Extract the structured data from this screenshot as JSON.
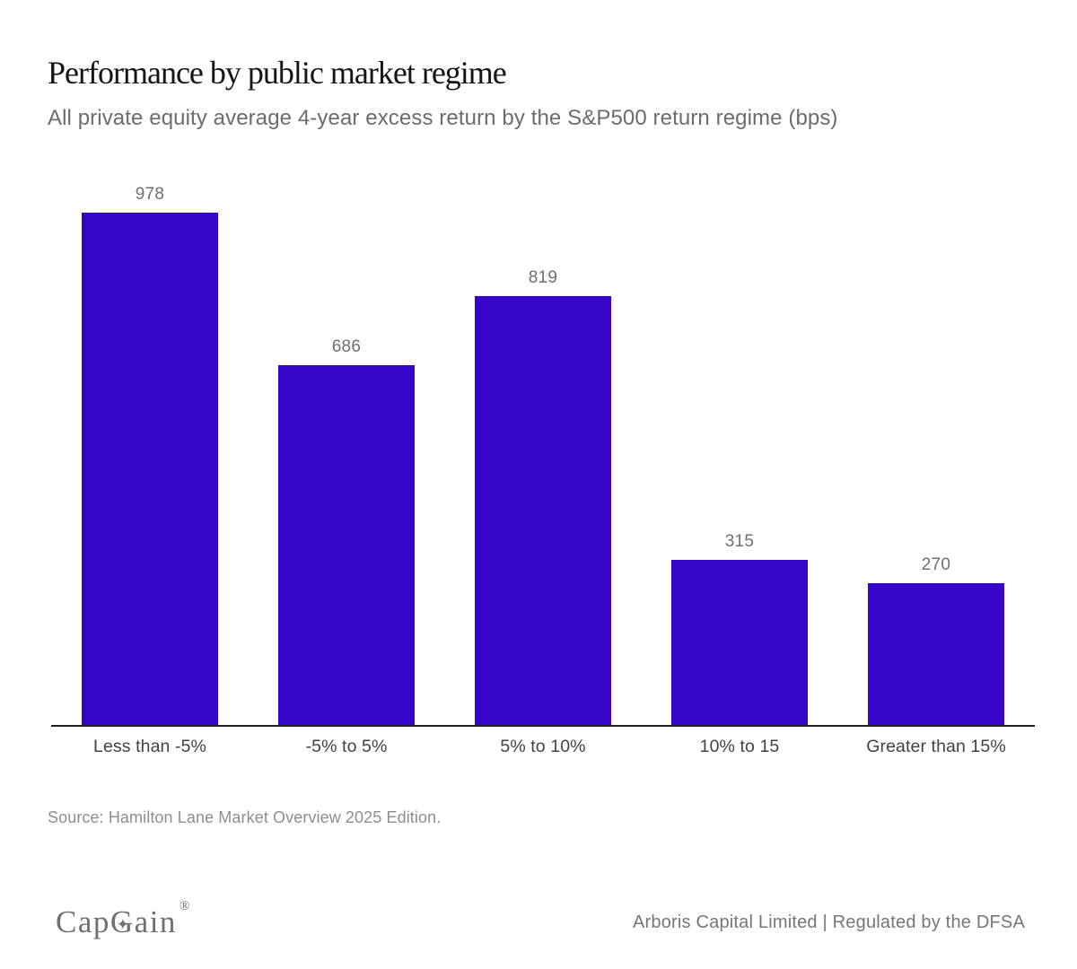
{
  "header": {
    "title": "Performance by public market regime",
    "subtitle": "All private equity average 4-year excess return by the S&P500 return regime (bps)"
  },
  "chart_data": {
    "type": "bar",
    "title": "Performance by public market regime",
    "subtitle": "All private equity average 4-year excess return by the S&P500 return regime (bps)",
    "categories": [
      "Less than -5%",
      "-5% to 5%",
      "5% to 10%",
      "10% to 15",
      "Greater than 15%"
    ],
    "values": [
      978,
      686,
      819,
      315,
      270
    ],
    "xlabel": "",
    "ylabel": "",
    "ylim": [
      0,
      1000
    ],
    "grid": false,
    "legend": false,
    "value_labels": true,
    "bar_color": "#3605C9",
    "axis_line_color": "#1d1d1d",
    "value_label_color": "#6f6f6f",
    "category_label_color": "#424242"
  },
  "source": {
    "text": "Source: Hamilton Lane Market Overview 2025 Edition."
  },
  "footer": {
    "logo": {
      "cap": "Cap",
      "g": "G",
      "star": "✦",
      "ain": "ain",
      "registered": "®"
    },
    "company_line": "Arboris Capital Limited | Regulated by the DFSA"
  }
}
